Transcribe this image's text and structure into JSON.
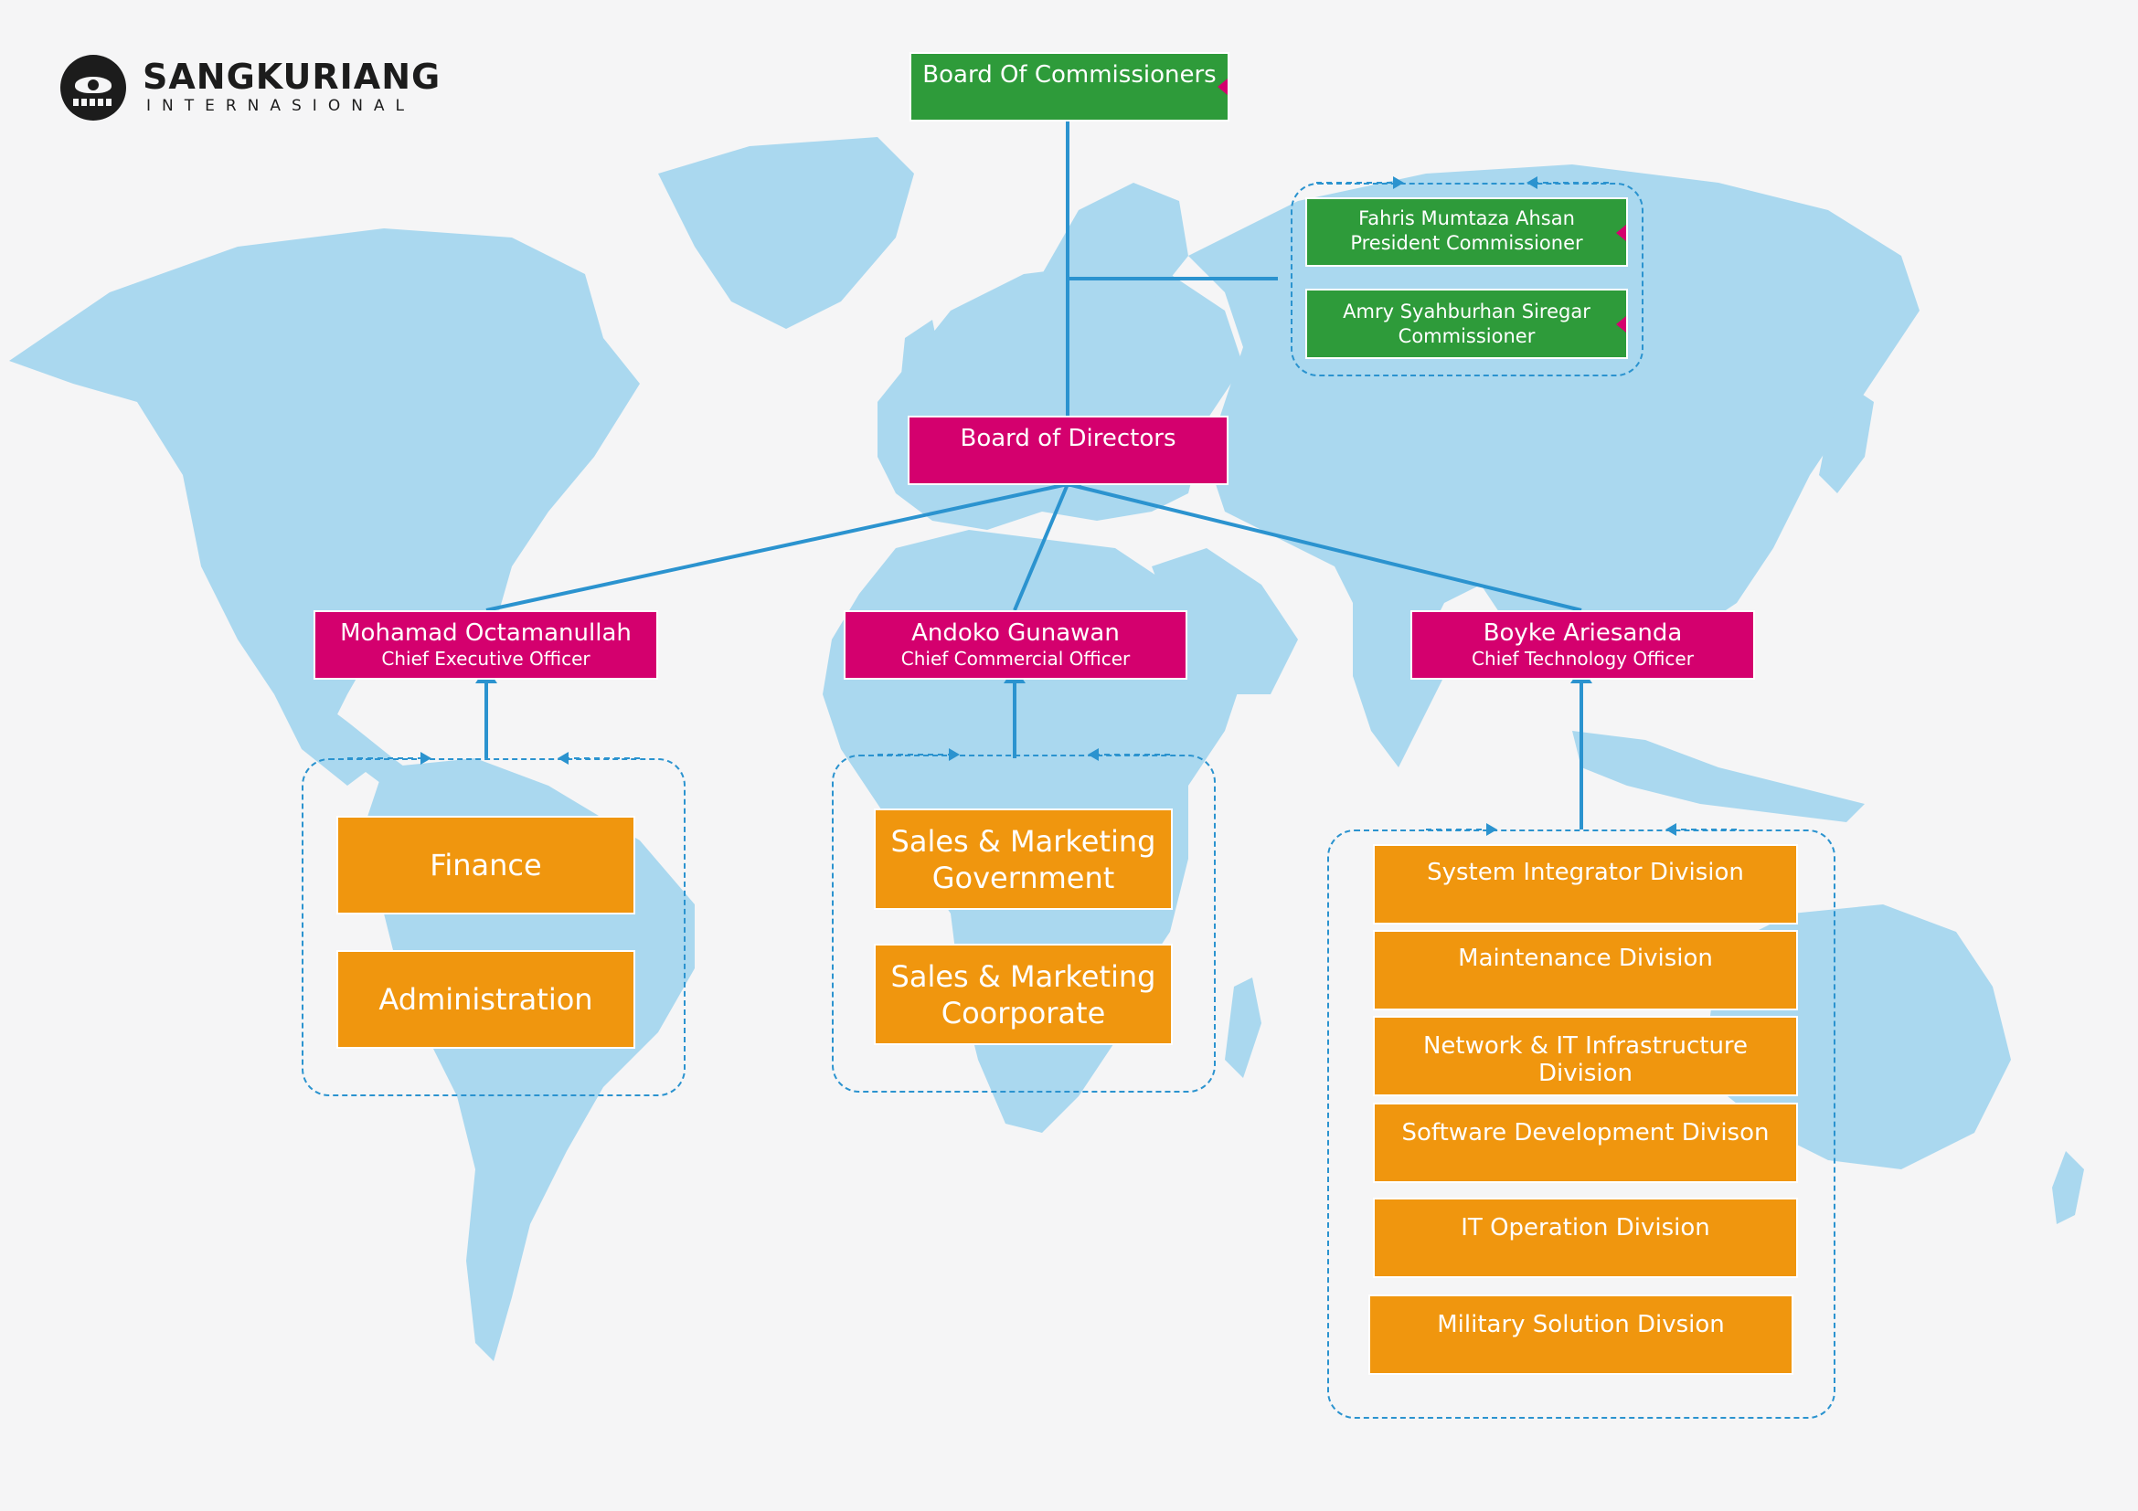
{
  "logo": {
    "name": "SANGKURIANG",
    "subtitle": "INTERNASIONAL"
  },
  "board_of_commissioners": "Board Of Commissioners",
  "commissioners": [
    {
      "name": "Fahris Mumtaza Ahsan",
      "title": "President Commissioner"
    },
    {
      "name": "Amry Syahburhan Siregar",
      "title": "Commissioner"
    }
  ],
  "board_of_directors": "Board of Directors",
  "directors": [
    {
      "name": "Mohamad Octamanullah",
      "title": "Chief Executive Officer"
    },
    {
      "name": "Andoko Gunawan",
      "title": "Chief Commercial Officer"
    },
    {
      "name": "Boyke Ariesanda",
      "title": "Chief Technology Officer"
    }
  ],
  "ceo_units": [
    "Finance",
    "Administration"
  ],
  "cco_units": [
    {
      "line1": "Sales & Marketing",
      "line2": "Government"
    },
    {
      "line1": "Sales & Marketing",
      "line2": "Coorporate"
    }
  ],
  "cto_units": [
    "System Integrator Division",
    "Maintenance Division",
    "Network & IT Infrastructure Division",
    "Software Development Divison",
    "IT Operation Division",
    "Military Solution Divsion"
  ],
  "colors": {
    "commissioner_green": "#2e9b3a",
    "director_magenta": "#d4006e",
    "unit_orange": "#f0960e",
    "connector_blue": "#2b93cf",
    "map_blue": "#aad8ef",
    "background": "#f5f5f6"
  }
}
